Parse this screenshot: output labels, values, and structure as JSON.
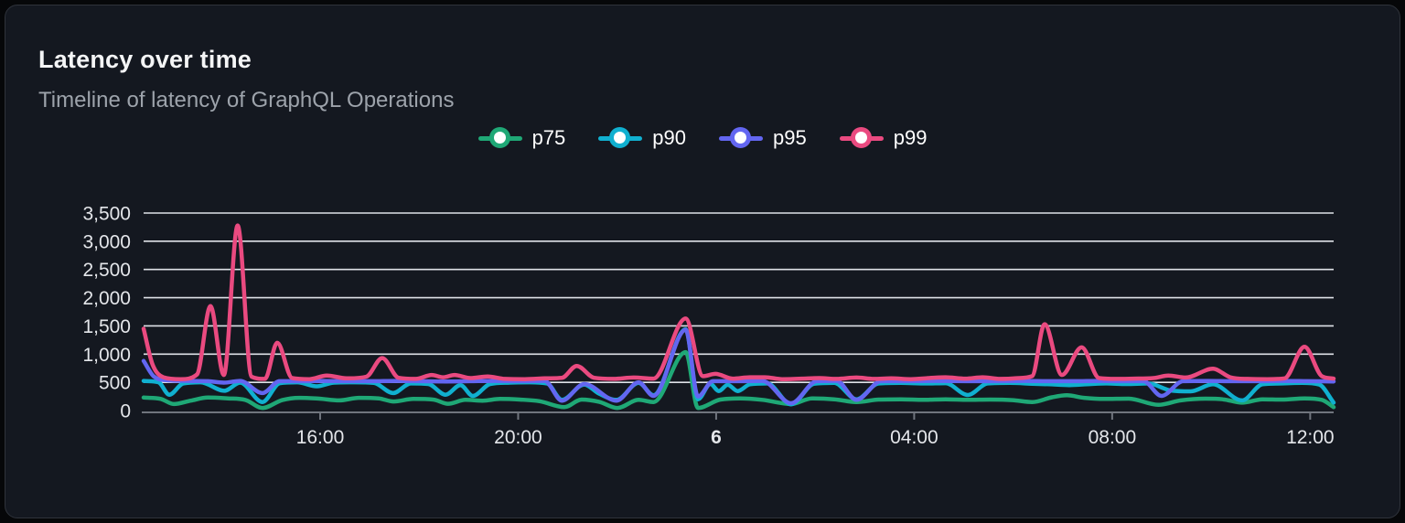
{
  "card": {
    "title": "Latency over time",
    "subtitle": "Timeline of latency of GraphQL Operations"
  },
  "colors": {
    "page": "#060709",
    "card_background": "#141820",
    "card_border": "#2f333b",
    "grid": "#dfe2e8",
    "axis": "#70757e",
    "tick_label": "#e4e6ea",
    "title": "#f4f5f6",
    "subtitle": "#9da3ab",
    "p75": "#1fa876",
    "p90": "#10b0d0",
    "p95": "#6366f1",
    "p99": "#ea4a80"
  },
  "chart_data": {
    "type": "line",
    "title": "Latency over time",
    "subtitle": "Timeline of latency of GraphQL Operations",
    "unit": "ms",
    "grid": "horizontal",
    "legend_position": "top-center",
    "ylim": [
      0,
      3500
    ],
    "y_ticks": [
      {
        "value": 0,
        "label": "0"
      },
      {
        "value": 500,
        "label": "500"
      },
      {
        "value": 1000,
        "label": "1,000"
      },
      {
        "value": 1500,
        "label": "1,500"
      },
      {
        "value": 2000,
        "label": "2,000"
      },
      {
        "value": 2500,
        "label": "2,500"
      },
      {
        "value": 3000,
        "label": "3,000"
      },
      {
        "value": 3500,
        "label": "3,500"
      }
    ],
    "x_domain_hours": 24.04,
    "x_start_time": "12:26",
    "x_ticks": [
      {
        "t": 3.566,
        "label": "16:00",
        "bold": false
      },
      {
        "t": 7.566,
        "label": "20:00",
        "bold": false
      },
      {
        "t": 11.566,
        "label": "6",
        "bold": true
      },
      {
        "t": 15.566,
        "label": "04:00",
        "bold": false
      },
      {
        "t": 19.566,
        "label": "08:00",
        "bold": false
      },
      {
        "t": 23.566,
        "label": "12:00",
        "bold": false
      }
    ],
    "series": [
      {
        "name": "p75",
        "color": "#1fa876",
        "points": [
          [
            0,
            230
          ],
          [
            0.35,
            205
          ],
          [
            0.61,
            115
          ],
          [
            0.95,
            175
          ],
          [
            1.3,
            230
          ],
          [
            1.7,
            215
          ],
          [
            2.05,
            190
          ],
          [
            2.4,
            45
          ],
          [
            2.8,
            185
          ],
          [
            3.15,
            225
          ],
          [
            3.55,
            210
          ],
          [
            3.95,
            180
          ],
          [
            4.35,
            225
          ],
          [
            4.75,
            215
          ],
          [
            5.05,
            160
          ],
          [
            5.45,
            205
          ],
          [
            5.85,
            195
          ],
          [
            6.15,
            120
          ],
          [
            6.5,
            190
          ],
          [
            6.85,
            175
          ],
          [
            7.2,
            205
          ],
          [
            7.6,
            195
          ],
          [
            8.0,
            165
          ],
          [
            8.5,
            60
          ],
          [
            8.85,
            195
          ],
          [
            9.2,
            155
          ],
          [
            9.57,
            45
          ],
          [
            10.0,
            190
          ],
          [
            10.3,
            150
          ],
          [
            10.95,
            1035
          ],
          [
            11.2,
            45
          ],
          [
            11.65,
            195
          ],
          [
            12.05,
            215
          ],
          [
            12.5,
            190
          ],
          [
            13.08,
            115
          ],
          [
            13.5,
            215
          ],
          [
            13.95,
            200
          ],
          [
            14.4,
            150
          ],
          [
            14.85,
            195
          ],
          [
            15.3,
            200
          ],
          [
            15.75,
            190
          ],
          [
            16.2,
            200
          ],
          [
            16.65,
            190
          ],
          [
            17.1,
            195
          ],
          [
            17.55,
            185
          ],
          [
            17.95,
            150
          ],
          [
            18.35,
            235
          ],
          [
            18.65,
            270
          ],
          [
            19.0,
            225
          ],
          [
            19.4,
            205
          ],
          [
            19.9,
            210
          ],
          [
            20.5,
            100
          ],
          [
            20.95,
            180
          ],
          [
            21.45,
            210
          ],
          [
            21.8,
            200
          ],
          [
            22.19,
            140
          ],
          [
            22.6,
            200
          ],
          [
            23.0,
            195
          ],
          [
            23.45,
            215
          ],
          [
            23.8,
            190
          ],
          [
            24.04,
            60
          ]
        ]
      },
      {
        "name": "p90",
        "color": "#10b0d0",
        "points": [
          [
            0,
            525
          ],
          [
            0.3,
            500
          ],
          [
            0.52,
            280
          ],
          [
            0.8,
            480
          ],
          [
            1.15,
            500
          ],
          [
            1.63,
            350
          ],
          [
            1.95,
            495
          ],
          [
            2.4,
            150
          ],
          [
            2.75,
            485
          ],
          [
            3.1,
            500
          ],
          [
            3.5,
            430
          ],
          [
            3.85,
            495
          ],
          [
            4.25,
            500
          ],
          [
            4.65,
            490
          ],
          [
            5.04,
            310
          ],
          [
            5.4,
            480
          ],
          [
            5.75,
            470
          ],
          [
            6.1,
            280
          ],
          [
            6.4,
            450
          ],
          [
            6.65,
            260
          ],
          [
            7.0,
            470
          ],
          [
            7.4,
            495
          ],
          [
            7.8,
            500
          ],
          [
            8.15,
            480
          ],
          [
            8.45,
            190
          ],
          [
            8.9,
            460
          ],
          [
            9.2,
            300
          ],
          [
            9.55,
            190
          ],
          [
            10.0,
            490
          ],
          [
            10.3,
            270
          ],
          [
            10.95,
            1440
          ],
          [
            11.2,
            200
          ],
          [
            11.45,
            470
          ],
          [
            11.62,
            345
          ],
          [
            11.8,
            455
          ],
          [
            12.0,
            345
          ],
          [
            12.25,
            465
          ],
          [
            12.6,
            480
          ],
          [
            13.08,
            110
          ],
          [
            13.55,
            475
          ],
          [
            13.95,
            490
          ],
          [
            14.4,
            200
          ],
          [
            14.85,
            480
          ],
          [
            15.3,
            490
          ],
          [
            15.8,
            480
          ],
          [
            16.2,
            485
          ],
          [
            16.65,
            275
          ],
          [
            17.05,
            480
          ],
          [
            17.5,
            490
          ],
          [
            17.95,
            475
          ],
          [
            18.3,
            465
          ],
          [
            18.7,
            450
          ],
          [
            19.05,
            465
          ],
          [
            19.45,
            480
          ],
          [
            19.85,
            470
          ],
          [
            20.3,
            480
          ],
          [
            20.75,
            355
          ],
          [
            21.15,
            340
          ],
          [
            21.6,
            465
          ],
          [
            22.19,
            180
          ],
          [
            22.6,
            465
          ],
          [
            23.0,
            480
          ],
          [
            23.4,
            490
          ],
          [
            23.75,
            460
          ],
          [
            24.04,
            140
          ]
        ]
      },
      {
        "name": "p95",
        "color": "#6366f1",
        "points": [
          [
            0,
            880
          ],
          [
            0.2,
            610
          ],
          [
            0.5,
            535
          ],
          [
            0.9,
            525
          ],
          [
            1.3,
            520
          ],
          [
            1.62,
            495
          ],
          [
            1.95,
            525
          ],
          [
            2.4,
            310
          ],
          [
            2.75,
            520
          ],
          [
            3.2,
            520
          ],
          [
            3.6,
            525
          ],
          [
            4.1,
            520
          ],
          [
            4.6,
            520
          ],
          [
            5.1,
            525
          ],
          [
            5.6,
            520
          ],
          [
            6.1,
            515
          ],
          [
            6.6,
            520
          ],
          [
            7.1,
            525
          ],
          [
            7.6,
            520
          ],
          [
            8.1,
            525
          ],
          [
            8.45,
            175
          ],
          [
            8.9,
            470
          ],
          [
            9.55,
            175
          ],
          [
            10.0,
            500
          ],
          [
            10.3,
            260
          ],
          [
            10.95,
            1430
          ],
          [
            11.2,
            250
          ],
          [
            11.5,
            520
          ],
          [
            12.0,
            520
          ],
          [
            12.5,
            525
          ],
          [
            13.08,
            130
          ],
          [
            13.6,
            520
          ],
          [
            14.0,
            525
          ],
          [
            14.4,
            190
          ],
          [
            14.9,
            520
          ],
          [
            15.4,
            520
          ],
          [
            16.0,
            525
          ],
          [
            16.6,
            520
          ],
          [
            17.2,
            520
          ],
          [
            17.8,
            525
          ],
          [
            18.3,
            520
          ],
          [
            18.8,
            520
          ],
          [
            19.3,
            525
          ],
          [
            19.8,
            520
          ],
          [
            20.2,
            520
          ],
          [
            20.56,
            260
          ],
          [
            21.0,
            520
          ],
          [
            21.5,
            525
          ],
          [
            22.0,
            520
          ],
          [
            22.5,
            520
          ],
          [
            23.0,
            525
          ],
          [
            23.5,
            520
          ],
          [
            24.04,
            515
          ]
        ]
      },
      {
        "name": "p99",
        "color": "#ea4a80",
        "points": [
          [
            0,
            1450
          ],
          [
            0.18,
            820
          ],
          [
            0.4,
            590
          ],
          [
            0.75,
            555
          ],
          [
            1.08,
            640
          ],
          [
            1.35,
            1850
          ],
          [
            1.62,
            630
          ],
          [
            1.9,
            3280
          ],
          [
            2.18,
            600
          ],
          [
            2.45,
            560
          ],
          [
            2.7,
            1200
          ],
          [
            3.0,
            575
          ],
          [
            3.35,
            555
          ],
          [
            3.7,
            620
          ],
          [
            4.1,
            570
          ],
          [
            4.5,
            600
          ],
          [
            4.82,
            930
          ],
          [
            5.15,
            580
          ],
          [
            5.5,
            560
          ],
          [
            5.82,
            630
          ],
          [
            6.05,
            590
          ],
          [
            6.28,
            630
          ],
          [
            6.6,
            575
          ],
          [
            6.95,
            605
          ],
          [
            7.3,
            560
          ],
          [
            7.7,
            555
          ],
          [
            8.1,
            570
          ],
          [
            8.45,
            580
          ],
          [
            8.75,
            790
          ],
          [
            9.1,
            580
          ],
          [
            9.5,
            560
          ],
          [
            9.9,
            585
          ],
          [
            10.3,
            565
          ],
          [
            10.95,
            1630
          ],
          [
            11.3,
            610
          ],
          [
            11.55,
            650
          ],
          [
            11.9,
            565
          ],
          [
            12.25,
            590
          ],
          [
            12.55,
            590
          ],
          [
            12.9,
            555
          ],
          [
            13.3,
            565
          ],
          [
            13.65,
            575
          ],
          [
            14.0,
            560
          ],
          [
            14.4,
            585
          ],
          [
            14.75,
            560
          ],
          [
            15.1,
            570
          ],
          [
            15.5,
            555
          ],
          [
            15.85,
            575
          ],
          [
            16.2,
            590
          ],
          [
            16.6,
            565
          ],
          [
            16.95,
            590
          ],
          [
            17.3,
            560
          ],
          [
            17.6,
            570
          ],
          [
            17.95,
            610
          ],
          [
            18.2,
            1530
          ],
          [
            18.55,
            630
          ],
          [
            18.95,
            1120
          ],
          [
            19.3,
            575
          ],
          [
            19.65,
            560
          ],
          [
            20.0,
            565
          ],
          [
            20.4,
            575
          ],
          [
            20.7,
            620
          ],
          [
            21.05,
            585
          ],
          [
            21.6,
            740
          ],
          [
            21.95,
            590
          ],
          [
            22.3,
            560
          ],
          [
            22.7,
            555
          ],
          [
            23.05,
            570
          ],
          [
            23.45,
            1130
          ],
          [
            23.8,
            610
          ],
          [
            24.04,
            565
          ]
        ]
      }
    ]
  }
}
